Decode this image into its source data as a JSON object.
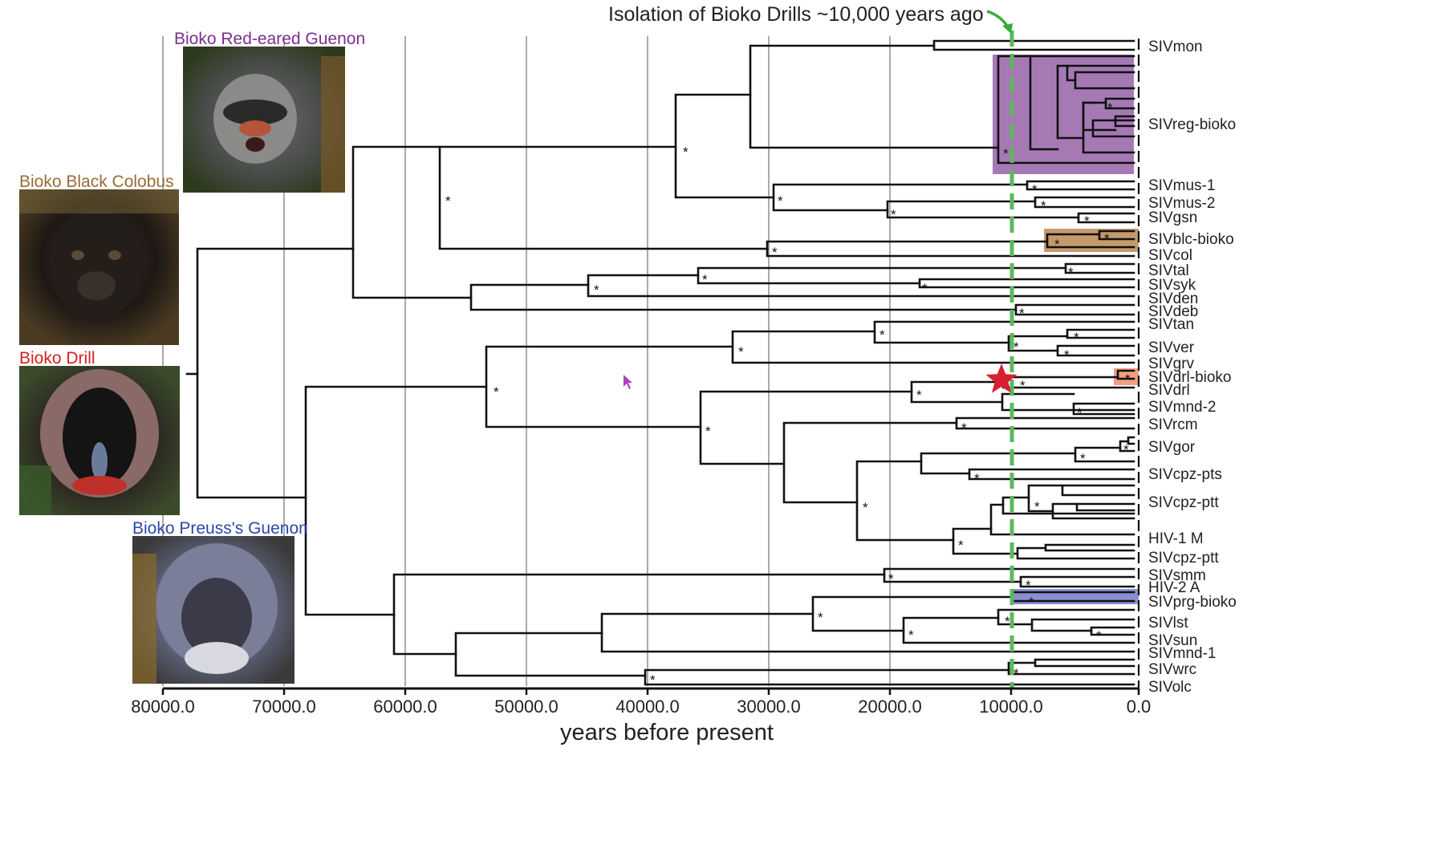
{
  "annotation": "Isolation of Bioko Drills ~10,000 years ago",
  "axis": {
    "title": "years before present",
    "ticks": [
      "80000.0",
      "70000.0",
      "60000.0",
      "50000.0",
      "40000.0",
      "30000.0",
      "20000.0",
      "10000.0",
      "0.0"
    ]
  },
  "photos": [
    {
      "caption": "Bioko Red-eared Guenon",
      "color": "#7a2e8e"
    },
    {
      "caption": "Bioko Black Colobus",
      "color": "#9a6a3a"
    },
    {
      "caption": "Bioko Drill",
      "color": "#d62020"
    },
    {
      "caption": "Bioko Preuss's Guenon",
      "color": "#2a48a8"
    }
  ],
  "leaves": [
    {
      "label": "SIVmon",
      "color": "#222222"
    },
    {
      "label": "SIVreg-bioko",
      "color": "#7a2e8e"
    },
    {
      "label": "SIVmus-1",
      "color": "#222222"
    },
    {
      "label": "SIVmus-2",
      "color": "#222222"
    },
    {
      "label": "SIVgsn",
      "color": "#222222"
    },
    {
      "label": "SIVblc-bioko",
      "color": "#9a6a3a"
    },
    {
      "label": "SIVcol",
      "color": "#222222"
    },
    {
      "label": "SIVtal",
      "color": "#222222"
    },
    {
      "label": "SIVsyk",
      "color": "#222222"
    },
    {
      "label": "SIVden",
      "color": "#222222"
    },
    {
      "label": "SIVdeb",
      "color": "#222222"
    },
    {
      "label": "SIVtan",
      "color": "#222222"
    },
    {
      "label": "SIVver",
      "color": "#222222"
    },
    {
      "label": "SIVgrv",
      "color": "#222222"
    },
    {
      "label": "SIVdrl-bioko",
      "color": "#e02020"
    },
    {
      "label": "SIVdrl",
      "color": "#222222"
    },
    {
      "label": "SIVmnd-2",
      "color": "#222222"
    },
    {
      "label": "SIVrcm",
      "color": "#222222"
    },
    {
      "label": "SIVgor",
      "color": "#222222"
    },
    {
      "label": "SIVcpz-pts",
      "color": "#222222"
    },
    {
      "label": "SIVcpz-ptt",
      "color": "#222222"
    },
    {
      "label": "HIV-1 M",
      "color": "#222222"
    },
    {
      "label": "SIVcpz-ptt",
      "color": "#222222"
    },
    {
      "label": "SIVsmm",
      "color": "#222222"
    },
    {
      "label": "HIV-2 A",
      "color": "#222222"
    },
    {
      "label": "SIVprg-bioko",
      "color": "#2a48a8"
    },
    {
      "label": "SIVlst",
      "color": "#222222"
    },
    {
      "label": "SIVsun",
      "color": "#222222"
    },
    {
      "label": "SIVmnd-1",
      "color": "#222222"
    },
    {
      "label": "SIVwrc",
      "color": "#222222"
    },
    {
      "label": "SIVolc",
      "color": "#222222"
    }
  ],
  "colors": {
    "tree": "#111111",
    "isolation_line": "#5cb85c",
    "arrow": "#3aaa3a",
    "reg_box": "#a679b5",
    "blc_box": "#c49a6c",
    "drl_box": "#f0a080",
    "prg_box": "#8a8fd0",
    "star": "#d62030"
  },
  "support_marker": "*"
}
